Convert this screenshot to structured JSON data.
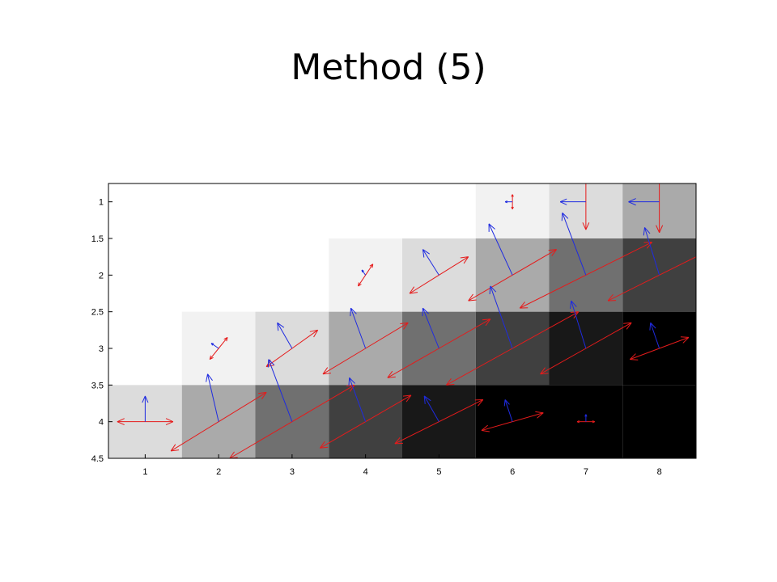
{
  "title": "Method (5)",
  "chart_data": {
    "type": "heatmap",
    "subtype": "quiver-overlay",
    "xlim": [
      0.5,
      8.5
    ],
    "ylim": [
      0.75,
      4.5
    ],
    "y_reversed": true,
    "xticks": [
      "1",
      "2",
      "3",
      "4",
      "5",
      "6",
      "7",
      "8"
    ],
    "yticks": [
      "1",
      "1.5",
      "2",
      "2.5",
      "3",
      "3.5",
      "4",
      "4.5"
    ],
    "grid": false,
    "rows": [
      1,
      2,
      3,
      4
    ],
    "cols": [
      1,
      2,
      3,
      4,
      5,
      6,
      7,
      8
    ],
    "cell_gray": [
      [
        255,
        255,
        255,
        255,
        255,
        242,
        220,
        170
      ],
      [
        255,
        255,
        255,
        242,
        220,
        170,
        112,
        64
      ],
      [
        255,
        242,
        220,
        170,
        112,
        64,
        24,
        0
      ],
      [
        220,
        170,
        112,
        64,
        24,
        0,
        0,
        0
      ]
    ],
    "arrow_colors": {
      "blue": "#1f2be0",
      "red": "#e51b1b"
    },
    "blue_arrows": [
      {
        "x": 1,
        "y": 4,
        "u": 0,
        "v": -0.35
      },
      {
        "x": 2,
        "y": 4,
        "u": -0.15,
        "v": -0.65
      },
      {
        "x": 3,
        "y": 4,
        "u": -0.32,
        "v": -0.85
      },
      {
        "x": 4,
        "y": 4,
        "u": -0.22,
        "v": -0.6
      },
      {
        "x": 5,
        "y": 4,
        "u": -0.2,
        "v": -0.35
      },
      {
        "x": 6,
        "y": 4,
        "u": -0.1,
        "v": -0.3
      },
      {
        "x": 7,
        "y": 4,
        "u": 0,
        "v": -0.1
      },
      {
        "x": 2,
        "y": 3,
        "u": -0.1,
        "v": -0.07
      },
      {
        "x": 3,
        "y": 3,
        "u": -0.2,
        "v": -0.35
      },
      {
        "x": 4,
        "y": 3,
        "u": -0.2,
        "v": -0.55
      },
      {
        "x": 5,
        "y": 3,
        "u": -0.22,
        "v": -0.55
      },
      {
        "x": 6,
        "y": 3,
        "u": -0.3,
        "v": -0.85
      },
      {
        "x": 7,
        "y": 3,
        "u": -0.2,
        "v": -0.65
      },
      {
        "x": 8,
        "y": 3,
        "u": -0.12,
        "v": -0.35
      },
      {
        "x": 4,
        "y": 2,
        "u": -0.05,
        "v": -0.07
      },
      {
        "x": 5,
        "y": 2,
        "u": -0.22,
        "v": -0.35
      },
      {
        "x": 6,
        "y": 2,
        "u": -0.32,
        "v": -0.7
      },
      {
        "x": 7,
        "y": 2,
        "u": -0.32,
        "v": -0.85
      },
      {
        "x": 8,
        "y": 2,
        "u": -0.2,
        "v": -0.65
      },
      {
        "x": 6,
        "y": 1,
        "u": -0.1,
        "v": 0
      },
      {
        "x": 7,
        "y": 1,
        "u": -0.35,
        "v": 0
      },
      {
        "x": 8,
        "y": 1,
        "u": -0.42,
        "v": 0
      }
    ],
    "red_arrows": [
      {
        "x": 1,
        "y": 4,
        "u": 0.38,
        "v": 0
      },
      {
        "x": 2,
        "y": 4,
        "u": 0.65,
        "v": -0.4
      },
      {
        "x": 3,
        "y": 4,
        "u": 0.85,
        "v": -0.5
      },
      {
        "x": 4,
        "y": 4,
        "u": 0.62,
        "v": -0.36
      },
      {
        "x": 5,
        "y": 4,
        "u": 0.6,
        "v": -0.3
      },
      {
        "x": 6,
        "y": 4,
        "u": 0.42,
        "v": -0.12
      },
      {
        "x": 7,
        "y": 4,
        "u": 0.12,
        "v": 0
      },
      {
        "x": 2,
        "y": 3,
        "u": 0.12,
        "v": -0.15
      },
      {
        "x": 3,
        "y": 3,
        "u": 0.35,
        "v": -0.25
      },
      {
        "x": 4,
        "y": 3,
        "u": 0.58,
        "v": -0.35
      },
      {
        "x": 5,
        "y": 3,
        "u": 0.7,
        "v": -0.4
      },
      {
        "x": 6,
        "y": 3,
        "u": 0.9,
        "v": -0.5
      },
      {
        "x": 7,
        "y": 3,
        "u": 0.62,
        "v": -0.35
      },
      {
        "x": 8,
        "y": 3,
        "u": 0.4,
        "v": -0.15
      },
      {
        "x": 4,
        "y": 2,
        "u": 0.1,
        "v": -0.15
      },
      {
        "x": 5,
        "y": 2,
        "u": 0.4,
        "v": -0.25
      },
      {
        "x": 6,
        "y": 2,
        "u": 0.6,
        "v": -0.35
      },
      {
        "x": 7,
        "y": 2,
        "u": 0.9,
        "v": -0.45
      },
      {
        "x": 8,
        "y": 2,
        "u": 0.7,
        "v": -0.35
      },
      {
        "x": 6,
        "y": 1,
        "u": 0,
        "v": 0.1
      },
      {
        "x": 7,
        "y": 1,
        "u": 0,
        "v": 0.38
      },
      {
        "x": 8,
        "y": 1,
        "u": 0,
        "v": 0.42
      }
    ]
  }
}
